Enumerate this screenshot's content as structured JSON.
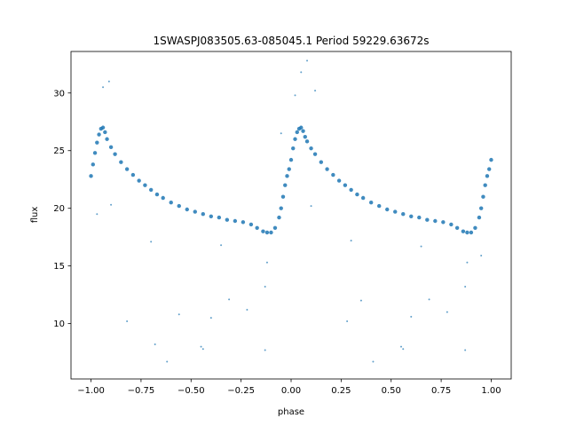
{
  "chart_data": {
    "type": "scatter",
    "title": "1SWASPJ083505.63-085045.1 Period 59229.63672s",
    "xlabel": "phase",
    "ylabel": "flux",
    "xlim": [
      -1.1,
      1.1
    ],
    "ylim": [
      5.2,
      33.6
    ],
    "xticks": [
      -1.0,
      -0.75,
      -0.5,
      -0.25,
      0.0,
      0.25,
      0.5,
      0.75,
      1.0
    ],
    "xtick_labels": [
      "−1.00",
      "−0.75",
      "−0.50",
      "−0.25",
      "0.00",
      "0.25",
      "0.50",
      "0.75",
      "1.00"
    ],
    "yticks": [
      10,
      15,
      20,
      25,
      30
    ],
    "ytick_labels": [
      "10",
      "15",
      "20",
      "25",
      "30"
    ],
    "grid": false,
    "legend": "none",
    "point_color": "#1f77b4",
    "series": [
      {
        "x": [
          -1.0,
          -0.99,
          -0.98,
          -0.97,
          -0.96,
          -0.95,
          -0.94,
          -0.93,
          -0.92,
          -0.9,
          -0.88,
          -0.85,
          -0.82,
          -0.79,
          -0.76,
          -0.73,
          -0.7,
          -0.67,
          -0.64,
          -0.6,
          -0.56,
          -0.52,
          -0.48,
          -0.44,
          -0.4,
          -0.36,
          -0.32,
          -0.28,
          -0.24,
          -0.2,
          -0.17,
          -0.14,
          -0.12,
          -0.1,
          -0.08,
          -0.06,
          -0.05,
          -0.04,
          -0.03,
          -0.02,
          -0.01,
          0.0,
          0.01,
          0.02,
          0.03,
          0.04,
          0.05,
          0.06,
          0.07,
          0.08,
          0.1,
          0.12,
          0.15,
          0.18,
          0.21,
          0.24,
          0.27,
          0.3,
          0.33,
          0.36,
          0.4,
          0.44,
          0.48,
          0.52,
          0.56,
          0.6,
          0.64,
          0.68,
          0.72,
          0.76,
          0.8,
          0.83,
          0.86,
          0.88,
          0.9,
          0.92,
          0.94,
          0.95,
          0.96,
          0.97,
          0.98,
          0.99,
          1.0
        ],
        "y": [
          22.8,
          23.8,
          24.8,
          25.7,
          26.4,
          26.9,
          27.0,
          26.6,
          26.0,
          25.3,
          24.7,
          24.0,
          23.4,
          22.9,
          22.4,
          22.0,
          21.6,
          21.2,
          20.9,
          20.5,
          20.2,
          19.9,
          19.7,
          19.5,
          19.3,
          19.2,
          19.0,
          18.9,
          18.8,
          18.6,
          18.3,
          18.0,
          17.9,
          17.9,
          18.3,
          19.2,
          20.0,
          21.0,
          22.0,
          22.8,
          23.4,
          24.2,
          25.2,
          26.0,
          26.6,
          26.9,
          27.0,
          26.7,
          26.2,
          25.8,
          25.2,
          24.7,
          24.0,
          23.4,
          22.9,
          22.4,
          22.0,
          21.6,
          21.2,
          20.9,
          20.5,
          20.2,
          19.9,
          19.7,
          19.5,
          19.3,
          19.2,
          19.0,
          18.9,
          18.8,
          18.6,
          18.3,
          18.0,
          17.9,
          17.9,
          18.3,
          19.2,
          20.0,
          21.0,
          22.0,
          22.8,
          23.4,
          24.2
        ]
      },
      {
        "x": [
          -0.97,
          -0.94,
          -0.91,
          -0.82,
          -0.68,
          -0.62,
          -0.56,
          -0.45,
          -0.44,
          -0.4,
          -0.31,
          -0.22,
          -0.13,
          -0.13,
          -0.12,
          -0.05,
          0.02,
          0.05,
          0.08,
          0.12,
          0.28,
          0.35,
          0.41,
          0.55,
          0.56,
          0.6,
          0.69,
          0.78,
          0.87,
          0.87,
          0.88,
          0.95,
          -0.9,
          0.1,
          -0.35,
          0.65,
          -0.7,
          0.3
        ],
        "y": [
          19.5,
          30.5,
          31.0,
          10.2,
          8.2,
          6.7,
          10.8,
          8.0,
          7.8,
          10.5,
          12.1,
          11.2,
          7.7,
          13.2,
          15.3,
          26.5,
          29.8,
          31.8,
          32.8,
          30.2,
          10.2,
          12.0,
          6.7,
          8.0,
          7.8,
          10.6,
          12.1,
          11.0,
          7.7,
          13.2,
          15.3,
          15.9,
          20.3,
          20.2,
          16.8,
          16.7,
          17.1,
          17.2
        ]
      }
    ]
  }
}
